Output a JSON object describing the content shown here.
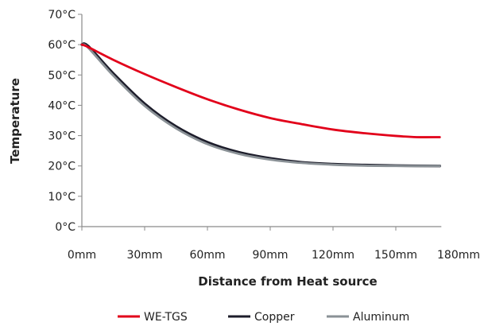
{
  "chart_data": {
    "type": "line",
    "xlabel": "Distance from Heat source",
    "ylabel": "Temperature",
    "xlim": [
      0,
      180
    ],
    "ylim": [
      0,
      70
    ],
    "x_ticks": [
      0,
      30,
      60,
      90,
      120,
      150,
      180
    ],
    "x_tick_labels": [
      "0mm",
      "30mm",
      "60mm",
      "90mm",
      "120mm",
      "150mm",
      "180mm"
    ],
    "y_ticks": [
      0,
      10,
      20,
      30,
      40,
      50,
      60,
      70
    ],
    "y_tick_labels": [
      "0°C",
      "10°C",
      "20°C",
      "30°C",
      "40°C",
      "50°C",
      "60°C",
      "70°C"
    ],
    "grid": false,
    "legend_position": "bottom",
    "series": [
      {
        "name": "WE-TGS",
        "color": "#e2001a",
        "x": [
          0,
          3,
          15,
          30,
          45,
          60,
          75,
          90,
          105,
          120,
          135,
          150,
          160,
          171
        ],
        "y": [
          60,
          59.2,
          55,
          50.3,
          46,
          42,
          38.6,
          35.8,
          33.8,
          32,
          30.8,
          29.9,
          29.5,
          29.5
        ]
      },
      {
        "name": "Copper",
        "color": "#1c1c2a",
        "x": [
          0,
          3,
          15,
          30,
          45,
          60,
          75,
          90,
          105,
          120,
          135,
          150,
          171
        ],
        "y": [
          60,
          59.5,
          50.5,
          40.5,
          33,
          27.8,
          24.5,
          22.5,
          21.2,
          20.6,
          20.3,
          20.1,
          20
        ]
      },
      {
        "name": "Aluminum",
        "color": "#8a9196",
        "x": [
          0,
          3,
          15,
          30,
          45,
          60,
          75,
          90,
          105,
          120,
          135,
          150,
          171
        ],
        "y": [
          60,
          59,
          49.8,
          39.8,
          32.4,
          27.2,
          24,
          22.1,
          21,
          20.4,
          20.1,
          20,
          20
        ]
      }
    ]
  }
}
